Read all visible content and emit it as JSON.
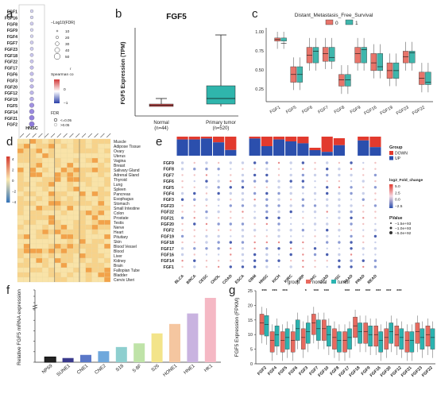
{
  "panels": {
    "a": {
      "label": "a",
      "genes": [
        "FGF1",
        "FGF16",
        "FGF8",
        "FGF9",
        "FGF4",
        "FGF7",
        "FGF23",
        "FGF18",
        "FGF22",
        "FGF17",
        "FGF6",
        "FGF3",
        "FGF20",
        "FGF12",
        "FGF19",
        "FGF5",
        "FGF14",
        "FGF21",
        "FGF2"
      ],
      "highlight_gene": "FGF5",
      "column": "HNSC",
      "size_legend_title": "−Log10(FDR)",
      "size_legend_values": [
        "10",
        "20",
        "30",
        "40",
        "50"
      ],
      "color_legend_title": "Spearman co",
      "color_legend_sub": "r",
      "color_ticks": [
        "0",
        "−1"
      ],
      "fdr_title": "FDR",
      "fdr_items": [
        "<=0.05",
        ">0.05"
      ],
      "dot_intensity": [
        0.05,
        0.05,
        0.1,
        0.05,
        0.05,
        0.1,
        0.1,
        0.15,
        0.15,
        0.2,
        0.2,
        0.2,
        0.25,
        0.25,
        0.3,
        0.5,
        0.55,
        0.6,
        0.65
      ]
    },
    "b": {
      "label": "b",
      "title": "FGF5",
      "ylabel": "FGF5 Expression (TPM)",
      "groups": [
        "Normal",
        "Primary tumor"
      ],
      "ns": [
        "(n=44)",
        "(n=520)"
      ],
      "colors": [
        "#e05050",
        "#2fb5ac"
      ]
    },
    "c": {
      "label": "c",
      "title": "Distant_Metastasis_Free_Survival",
      "legend_labels": [
        "0",
        "1"
      ],
      "legend_colors": [
        "#e8746a",
        "#3fb6ac"
      ],
      "highlight_gene": "FGF5"
    },
    "d": {
      "label": "d",
      "tissues": [
        "Muscle",
        "Adipose Tissue",
        "Ovary",
        "Uterus",
        "Vagina",
        "Breast",
        "Salivary Gland",
        "Adrenal Gland",
        "Thyroid",
        "Lung",
        "Spleen",
        "Pancreas",
        "Esophagus",
        "Stomach",
        "Small Intestine",
        "Colon",
        "Prostate",
        "Testis",
        "Nerve",
        "Heart",
        "Pituitary",
        "Skin",
        "Blood Vessel",
        "Blood",
        "Liver",
        "Kidney",
        "Brain",
        "Fallopian Tube",
        "Bladder",
        "Cervix Uteri"
      ],
      "scale_ticks": [
        "4",
        "2",
        "0",
        "−2",
        "−4"
      ]
    },
    "e": {
      "label": "e",
      "cancers": [
        "BLCA",
        "BRCA",
        "CESC",
        "CHOL",
        "COAD",
        "ESCA",
        "GBM",
        "HNSC",
        "KICH",
        "KIRC",
        "KIRP",
        "LIHC",
        "LUAD",
        "LUSC",
        "PAAD",
        "PRAD",
        "READ"
      ],
      "highlight_cancer": "HNSC",
      "genes": [
        "FGF9",
        "FGF8",
        "FGF7",
        "FGF6",
        "FGF5",
        "FGF4",
        "FGF3",
        "FGF23",
        "FGF22",
        "FGF21",
        "FGF20",
        "FGF2",
        "FGF19",
        "FGF18",
        "FGF17",
        "FGF16",
        "FGF14",
        "FGF1"
      ],
      "highlight_gene": "FGF5",
      "group_title": "Group",
      "group_items": [
        "DOWN",
        "UP"
      ],
      "group_colors": [
        "#e23a2e",
        "#2b4fad"
      ],
      "fc_title": "log2_Fold_change",
      "fc_ticks": [
        "5.0",
        "2.5",
        "0.0",
        "−2.5"
      ],
      "pval_title": "PValue",
      "pval_items": [
        "−1.5e+93",
        "−1.0e+93",
        "−5.0e+92"
      ]
    },
    "f": {
      "label": "f",
      "ylabel": "Relative FGF5 mRNA expression",
      "yticks": [
        "0",
        "2",
        "4",
        "6",
        "8",
        "10",
        "20",
        "40",
        "60"
      ],
      "cell_lines": [
        "NP69",
        "SUNE1",
        "CNE1",
        "CNE2",
        "S18",
        "5-8F",
        "S26",
        "HONE1",
        "HNE1",
        "HK1"
      ],
      "values": [
        1.0,
        0.8,
        1.4,
        2.1,
        2.9,
        3.6,
        5.5,
        7.3,
        9.3,
        35
      ],
      "colors": [
        "#222222",
        "#3a3a8c",
        "#5a78c8",
        "#6fa8dc",
        "#8ecfcf",
        "#bfe3a8",
        "#f3e48a",
        "#f5c6a0",
        "#c9b3e0",
        "#f5b8c4"
      ]
    },
    "g": {
      "label": "g",
      "ylabel": "FGF5 Expression (FPKM)",
      "yticks": [
        "0",
        "5",
        "10",
        "15",
        "20",
        "25"
      ],
      "legend_title": "group",
      "legend_items": [
        "normal",
        "tumor"
      ],
      "legend_colors": [
        "#e86a5f",
        "#2bb3b0"
      ],
      "genes": [
        "FGF2",
        "FGF4",
        "FGF5",
        "FGF6",
        "FGF3",
        "FGF7",
        "FGF10",
        "FGF8",
        "FGF17",
        "FGF18",
        "FGF9",
        "FGF16",
        "FGF20",
        "FGF12",
        "FGF21",
        "FGF23",
        "FGF22"
      ],
      "highlight_gene": "FGF5",
      "sig_labels": [
        "***",
        "***",
        "***",
        "*",
        "***",
        "***",
        "***",
        "***",
        "***",
        "***",
        "***",
        "***"
      ]
    }
  }
}
